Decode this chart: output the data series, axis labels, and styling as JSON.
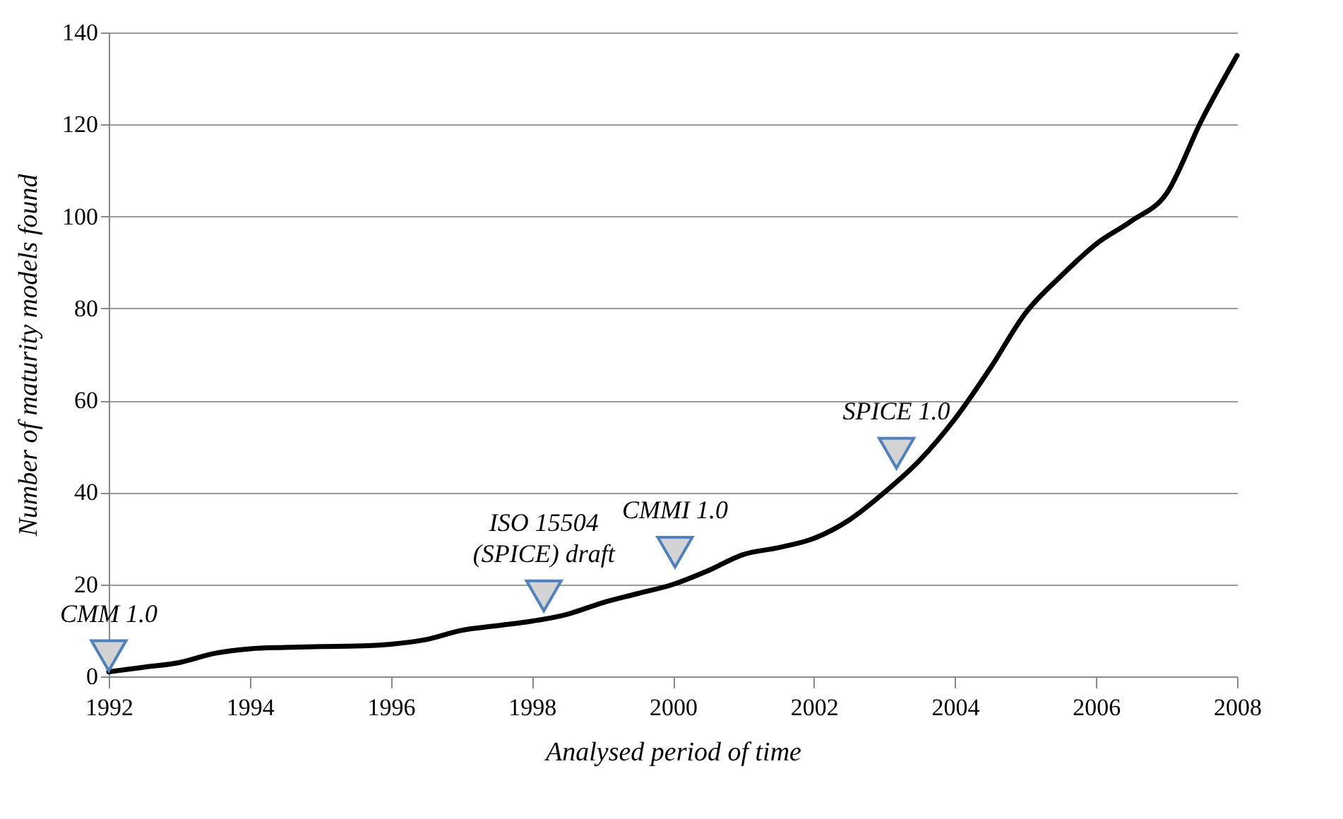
{
  "chart_data": {
    "type": "line",
    "xlabel": "Analysed period of time",
    "ylabel": "Number of maturity models found",
    "x": [
      1992,
      1992.5,
      1993,
      1993.5,
      1994,
      1994.5,
      1995,
      1995.5,
      1996,
      1996.5,
      1997,
      1997.5,
      1998,
      1998.5,
      1999,
      1999.5,
      2000,
      2000.5,
      2001,
      2001.5,
      2002,
      2002.5,
      2003,
      2003.5,
      2004,
      2004.5,
      2005,
      2005.5,
      2006,
      2006.5,
      2007,
      2007.5,
      2008
    ],
    "series": [
      {
        "color": "#000000",
        "values": [
          1,
          2,
          3,
          5,
          6,
          6.3,
          6.5,
          6.6,
          7,
          8,
          10,
          11,
          12,
          13.5,
          16,
          18,
          20,
          23,
          26.5,
          28,
          30,
          34,
          40,
          47,
          56,
          67,
          79,
          87,
          94,
          99,
          105,
          121,
          135
        ]
      },
      {
        "type": "scatter",
        "color": "#d3d3d3",
        "marker": "triangle",
        "x": [
          1992,
          1998.17,
          2000.03,
          2003.17
        ],
        "values": [
          4.5,
          17.5,
          27,
          48.5
        ]
      }
    ],
    "xlim": [
      1992,
      2008
    ],
    "xticks": [
      1992,
      1994,
      1996,
      1998,
      2000,
      2002,
      2004,
      2006,
      2008
    ],
    "ylim": [
      0,
      140
    ],
    "yticks": [
      0,
      20,
      40,
      60,
      80,
      100,
      120,
      140
    ],
    "grid": "y",
    "line_style": "solid",
    "annotations": [
      {
        "text": "CMM 1.0",
        "x": 1992,
        "y": 4.5
      },
      {
        "text": "ISO 15504\n(SPICE) draft",
        "x": 1998.17,
        "y": 17.5
      },
      {
        "text": "CMMI 1.0",
        "x": 2000.03,
        "y": 27
      },
      {
        "text": "SPICE 1.0",
        "x": 2003.17,
        "y": 48.5
      }
    ]
  }
}
